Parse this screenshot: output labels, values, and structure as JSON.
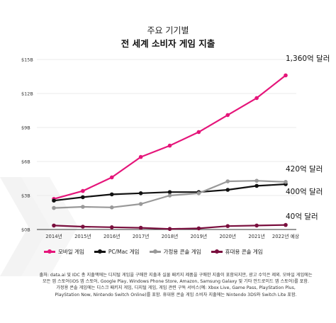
{
  "header": {
    "title": "주요 기기별",
    "subtitle": "전 세계 소비자 게임 지출"
  },
  "chart_data": {
    "type": "line",
    "categories": [
      "2014년",
      "2015년",
      "2016년",
      "2017년",
      "2018년",
      "2019년",
      "2020년",
      "2021년",
      "2022년 예상"
    ],
    "ylim": [
      0,
      15
    ],
    "yticks": [
      0,
      3,
      6,
      9,
      12,
      15
    ],
    "ytick_labels": [
      "$0B",
      "$3B",
      "$6B",
      "$9B",
      "$12B",
      "$15B"
    ],
    "grid": true,
    "legend_position": "bottom",
    "series": [
      {
        "name": "모바일 게임",
        "color": "#e5157a",
        "values": [
          2.7,
          3.4,
          4.6,
          6.4,
          7.4,
          8.6,
          10.1,
          11.6,
          13.6
        ],
        "end_label": "1,360억 달러"
      },
      {
        "name": "PC/Mac 게임",
        "color": "#111111",
        "values": [
          2.55,
          2.85,
          3.1,
          3.2,
          3.3,
          3.3,
          3.5,
          3.85,
          4.0
        ],
        "end_label": "400억 달러"
      },
      {
        "name": "가정용 콘솔 게임",
        "color": "#999999",
        "values": [
          1.9,
          2.0,
          1.95,
          2.25,
          3.0,
          3.2,
          4.25,
          4.3,
          4.2
        ],
        "end_label": "420억 달러"
      },
      {
        "name": "휴대용 콘솔 게임",
        "color": "#7a0f3e",
        "values": [
          0.35,
          0.25,
          0.2,
          0.15,
          0.05,
          0.1,
          0.3,
          0.35,
          0.4
        ],
        "end_label": "40억 달러"
      }
    ]
  },
  "source": {
    "line1": "출처: data.ai 및 IDC 총 지출액에는 디지털 게임을 구매한 지출과 실물 패키지 제품을 구매한 지출이 포함되지만, 광고 수익은 제외. 모바일 게임에는",
    "line2": "모든 앱 스토어(iOS 앱 스토어, Google Play, Windows Phone Store, Amazon, Samsung Galaxy 및 기타 안드로이드 앱 스토어)를 포함.",
    "line3": "가정용 콘솔 게임에는 디스크 패키지 게임, 디지털 게임, 게임 관련 구독 서비스(예: Xbox Live, Game Pass, PlayStation Plus,",
    "line4": "PlayStation Now, Nintendo Switch Online)를 포함. 휴대용 콘솔 게임 소비자 지출에는 Nintendo 3DS와 Switch Lite 포함."
  }
}
